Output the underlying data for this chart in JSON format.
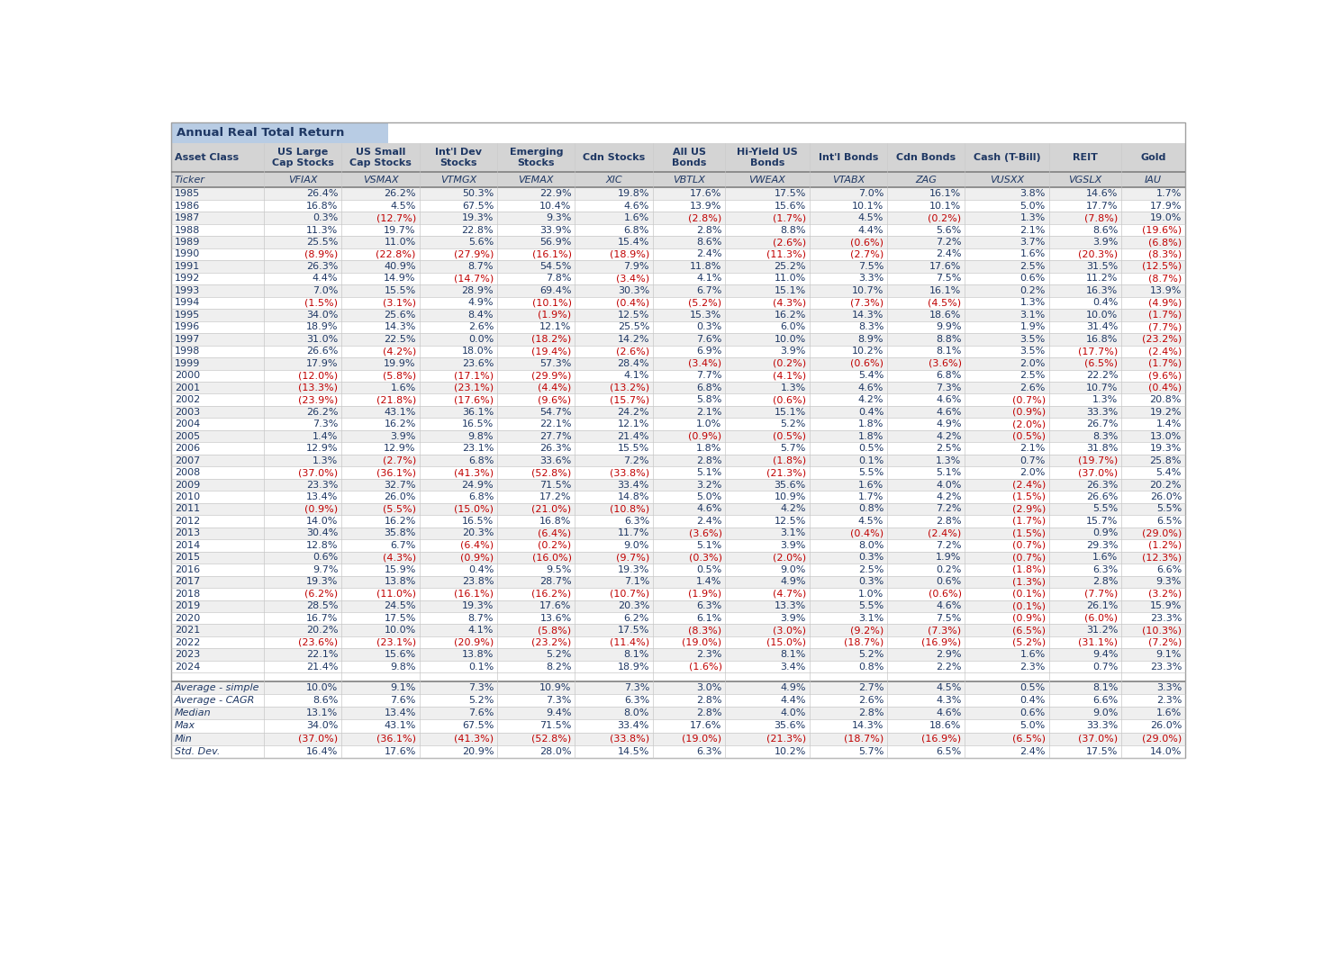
{
  "title": "Annual Real Total Return",
  "headers": [
    "Asset Class",
    "US Large\nCap Stocks",
    "US Small\nCap Stocks",
    "Int'l Dev\nStocks",
    "Emerging\nStocks",
    "Cdn Stocks",
    "All US\nBonds",
    "Hi-Yield US\nBonds",
    "Int'l Bonds",
    "Cdn Bonds",
    "Cash (T-Bill)",
    "REIT",
    "Gold"
  ],
  "ticker_row": [
    "Ticker",
    "VFIAX",
    "VSMAX",
    "VTMGX",
    "VEMAX",
    "XIC",
    "VBTLX",
    "VWEAX",
    "VTABX",
    "ZAG",
    "VUSXX",
    "VGSLX",
    "IAU"
  ],
  "years": [
    1985,
    1986,
    1987,
    1988,
    1989,
    1990,
    1991,
    1992,
    1993,
    1994,
    1995,
    1996,
    1997,
    1998,
    1999,
    2000,
    2001,
    2002,
    2003,
    2004,
    2005,
    2006,
    2007,
    2008,
    2009,
    2010,
    2011,
    2012,
    2013,
    2014,
    2015,
    2016,
    2017,
    2018,
    2019,
    2020,
    2021,
    2022,
    2023,
    2024
  ],
  "data": [
    [
      "26.4%",
      "26.2%",
      "50.3%",
      "22.9%",
      "19.8%",
      "17.6%",
      "17.5%",
      "7.0%",
      "16.1%",
      "3.8%",
      "14.6%",
      "1.7%"
    ],
    [
      "16.8%",
      "4.5%",
      "67.5%",
      "10.4%",
      "4.6%",
      "13.9%",
      "15.6%",
      "10.1%",
      "10.1%",
      "5.0%",
      "17.7%",
      "17.9%"
    ],
    [
      "0.3%",
      "(12.7%)",
      "19.3%",
      "9.3%",
      "1.6%",
      "(2.8%)",
      "(1.7%)",
      "4.5%",
      "(0.2%)",
      "1.3%",
      "(7.8%)",
      "19.0%"
    ],
    [
      "11.3%",
      "19.7%",
      "22.8%",
      "33.9%",
      "6.8%",
      "2.8%",
      "8.8%",
      "4.4%",
      "5.6%",
      "2.1%",
      "8.6%",
      "(19.6%)"
    ],
    [
      "25.5%",
      "11.0%",
      "5.6%",
      "56.9%",
      "15.4%",
      "8.6%",
      "(2.6%)",
      "(0.6%)",
      "7.2%",
      "3.7%",
      "3.9%",
      "(6.8%)"
    ],
    [
      "(8.9%)",
      "(22.8%)",
      "(27.9%)",
      "(16.1%)",
      "(18.9%)",
      "2.4%",
      "(11.3%)",
      "(2.7%)",
      "2.4%",
      "1.6%",
      "(20.3%)",
      "(8.3%)"
    ],
    [
      "26.3%",
      "40.9%",
      "8.7%",
      "54.5%",
      "7.9%",
      "11.8%",
      "25.2%",
      "7.5%",
      "17.6%",
      "2.5%",
      "31.5%",
      "(12.5%)"
    ],
    [
      "4.4%",
      "14.9%",
      "(14.7%)",
      "7.8%",
      "(3.4%)",
      "4.1%",
      "11.0%",
      "3.3%",
      "7.5%",
      "0.6%",
      "11.2%",
      "(8.7%)"
    ],
    [
      "7.0%",
      "15.5%",
      "28.9%",
      "69.4%",
      "30.3%",
      "6.7%",
      "15.1%",
      "10.7%",
      "16.1%",
      "0.2%",
      "16.3%",
      "13.9%"
    ],
    [
      "(1.5%)",
      "(3.1%)",
      "4.9%",
      "(10.1%)",
      "(0.4%)",
      "(5.2%)",
      "(4.3%)",
      "(7.3%)",
      "(4.5%)",
      "1.3%",
      "0.4%",
      "(4.9%)"
    ],
    [
      "34.0%",
      "25.6%",
      "8.4%",
      "(1.9%)",
      "12.5%",
      "15.3%",
      "16.2%",
      "14.3%",
      "18.6%",
      "3.1%",
      "10.0%",
      "(1.7%)"
    ],
    [
      "18.9%",
      "14.3%",
      "2.6%",
      "12.1%",
      "25.5%",
      "0.3%",
      "6.0%",
      "8.3%",
      "9.9%",
      "1.9%",
      "31.4%",
      "(7.7%)"
    ],
    [
      "31.0%",
      "22.5%",
      "0.0%",
      "(18.2%)",
      "14.2%",
      "7.6%",
      "10.0%",
      "8.9%",
      "8.8%",
      "3.5%",
      "16.8%",
      "(23.2%)"
    ],
    [
      "26.6%",
      "(4.2%)",
      "18.0%",
      "(19.4%)",
      "(2.6%)",
      "6.9%",
      "3.9%",
      "10.2%",
      "8.1%",
      "3.5%",
      "(17.7%)",
      "(2.4%)"
    ],
    [
      "17.9%",
      "19.9%",
      "23.6%",
      "57.3%",
      "28.4%",
      "(3.4%)",
      "(0.2%)",
      "(0.6%)",
      "(3.6%)",
      "2.0%",
      "(6.5%)",
      "(1.7%)"
    ],
    [
      "(12.0%)",
      "(5.8%)",
      "(17.1%)",
      "(29.9%)",
      "4.1%",
      "7.7%",
      "(4.1%)",
      "5.4%",
      "6.8%",
      "2.5%",
      "22.2%",
      "(9.6%)"
    ],
    [
      "(13.3%)",
      "1.6%",
      "(23.1%)",
      "(4.4%)",
      "(13.2%)",
      "6.8%",
      "1.3%",
      "4.6%",
      "7.3%",
      "2.6%",
      "10.7%",
      "(0.4%)"
    ],
    [
      "(23.9%)",
      "(21.8%)",
      "(17.6%)",
      "(9.6%)",
      "(15.7%)",
      "5.8%",
      "(0.6%)",
      "4.2%",
      "4.6%",
      "(0.7%)",
      "1.3%",
      "20.8%"
    ],
    [
      "26.2%",
      "43.1%",
      "36.1%",
      "54.7%",
      "24.2%",
      "2.1%",
      "15.1%",
      "0.4%",
      "4.6%",
      "(0.9%)",
      "33.3%",
      "19.2%"
    ],
    [
      "7.3%",
      "16.2%",
      "16.5%",
      "22.1%",
      "12.1%",
      "1.0%",
      "5.2%",
      "1.8%",
      "4.9%",
      "(2.0%)",
      "26.7%",
      "1.4%"
    ],
    [
      "1.4%",
      "3.9%",
      "9.8%",
      "27.7%",
      "21.4%",
      "(0.9%)",
      "(0.5%)",
      "1.8%",
      "4.2%",
      "(0.5%)",
      "8.3%",
      "13.0%"
    ],
    [
      "12.9%",
      "12.9%",
      "23.1%",
      "26.3%",
      "15.5%",
      "1.8%",
      "5.7%",
      "0.5%",
      "2.5%",
      "2.1%",
      "31.8%",
      "19.3%"
    ],
    [
      "1.3%",
      "(2.7%)",
      "6.8%",
      "33.6%",
      "7.2%",
      "2.8%",
      "(1.8%)",
      "0.1%",
      "1.3%",
      "0.7%",
      "(19.7%)",
      "25.8%"
    ],
    [
      "(37.0%)",
      "(36.1%)",
      "(41.3%)",
      "(52.8%)",
      "(33.8%)",
      "5.1%",
      "(21.3%)",
      "5.5%",
      "5.1%",
      "2.0%",
      "(37.0%)",
      "5.4%"
    ],
    [
      "23.3%",
      "32.7%",
      "24.9%",
      "71.5%",
      "33.4%",
      "3.2%",
      "35.6%",
      "1.6%",
      "4.0%",
      "(2.4%)",
      "26.3%",
      "20.2%"
    ],
    [
      "13.4%",
      "26.0%",
      "6.8%",
      "17.2%",
      "14.8%",
      "5.0%",
      "10.9%",
      "1.7%",
      "4.2%",
      "(1.5%)",
      "26.6%",
      "26.0%"
    ],
    [
      "(0.9%)",
      "(5.5%)",
      "(15.0%)",
      "(21.0%)",
      "(10.8%)",
      "4.6%",
      "4.2%",
      "0.8%",
      "7.2%",
      "(2.9%)",
      "5.5%",
      "5.5%"
    ],
    [
      "14.0%",
      "16.2%",
      "16.5%",
      "16.8%",
      "6.3%",
      "2.4%",
      "12.5%",
      "4.5%",
      "2.8%",
      "(1.7%)",
      "15.7%",
      "6.5%"
    ],
    [
      "30.4%",
      "35.8%",
      "20.3%",
      "(6.4%)",
      "11.7%",
      "(3.6%)",
      "3.1%",
      "(0.4%)",
      "(2.4%)",
      "(1.5%)",
      "0.9%",
      "(29.0%)"
    ],
    [
      "12.8%",
      "6.7%",
      "(6.4%)",
      "(0.2%)",
      "9.0%",
      "5.1%",
      "3.9%",
      "8.0%",
      "7.2%",
      "(0.7%)",
      "29.3%",
      "(1.2%)"
    ],
    [
      "0.6%",
      "(4.3%)",
      "(0.9%)",
      "(16.0%)",
      "(9.7%)",
      "(0.3%)",
      "(2.0%)",
      "0.3%",
      "1.9%",
      "(0.7%)",
      "1.6%",
      "(12.3%)"
    ],
    [
      "9.7%",
      "15.9%",
      "0.4%",
      "9.5%",
      "19.3%",
      "0.5%",
      "9.0%",
      "2.5%",
      "0.2%",
      "(1.8%)",
      "6.3%",
      "6.6%"
    ],
    [
      "19.3%",
      "13.8%",
      "23.8%",
      "28.7%",
      "7.1%",
      "1.4%",
      "4.9%",
      "0.3%",
      "0.6%",
      "(1.3%)",
      "2.8%",
      "9.3%"
    ],
    [
      "(6.2%)",
      "(11.0%)",
      "(16.1%)",
      "(16.2%)",
      "(10.7%)",
      "(1.9%)",
      "(4.7%)",
      "1.0%",
      "(0.6%)",
      "(0.1%)",
      "(7.7%)",
      "(3.2%)"
    ],
    [
      "28.5%",
      "24.5%",
      "19.3%",
      "17.6%",
      "20.3%",
      "6.3%",
      "13.3%",
      "5.5%",
      "4.6%",
      "(0.1%)",
      "26.1%",
      "15.9%"
    ],
    [
      "16.7%",
      "17.5%",
      "8.7%",
      "13.6%",
      "6.2%",
      "6.1%",
      "3.9%",
      "3.1%",
      "7.5%",
      "(0.9%)",
      "(6.0%)",
      "23.3%"
    ],
    [
      "20.2%",
      "10.0%",
      "4.1%",
      "(5.8%)",
      "17.5%",
      "(8.3%)",
      "(3.0%)",
      "(9.2%)",
      "(7.3%)",
      "(6.5%)",
      "31.2%",
      "(10.3%)"
    ],
    [
      "(23.6%)",
      "(23.1%)",
      "(20.9%)",
      "(23.2%)",
      "(11.4%)",
      "(19.0%)",
      "(15.0%)",
      "(18.7%)",
      "(16.9%)",
      "(5.2%)",
      "(31.1%)",
      "(7.2%)"
    ],
    [
      "22.1%",
      "15.6%",
      "13.8%",
      "5.2%",
      "8.1%",
      "2.3%",
      "8.1%",
      "5.2%",
      "2.9%",
      "1.6%",
      "9.4%",
      "9.1%"
    ],
    [
      "21.4%",
      "9.8%",
      "0.1%",
      "8.2%",
      "18.9%",
      "(1.6%)",
      "3.4%",
      "0.8%",
      "2.2%",
      "2.3%",
      "0.7%",
      "23.3%"
    ]
  ],
  "stat_labels": [
    "Average - simple",
    "Average - CAGR",
    "Median",
    "Max",
    "Min",
    "Std. Dev."
  ],
  "stat_data": [
    [
      "10.0%",
      "9.1%",
      "7.3%",
      "10.9%",
      "7.3%",
      "3.0%",
      "4.9%",
      "2.7%",
      "4.5%",
      "0.5%",
      "8.1%",
      "3.3%"
    ],
    [
      "8.6%",
      "7.6%",
      "5.2%",
      "7.3%",
      "6.3%",
      "2.8%",
      "4.4%",
      "2.6%",
      "4.3%",
      "0.4%",
      "6.6%",
      "2.3%"
    ],
    [
      "13.1%",
      "13.4%",
      "7.6%",
      "9.4%",
      "8.0%",
      "2.8%",
      "4.0%",
      "2.8%",
      "4.6%",
      "0.6%",
      "9.0%",
      "1.6%"
    ],
    [
      "34.0%",
      "43.1%",
      "67.5%",
      "71.5%",
      "33.4%",
      "17.6%",
      "35.6%",
      "14.3%",
      "18.6%",
      "5.0%",
      "33.3%",
      "26.0%"
    ],
    [
      "(37.0%)",
      "(36.1%)",
      "(41.3%)",
      "(52.8%)",
      "(33.8%)",
      "(19.0%)",
      "(21.3%)",
      "(18.7%)",
      "(16.9%)",
      "(6.5%)",
      "(37.0%)",
      "(29.0%)"
    ],
    [
      "16.4%",
      "17.6%",
      "20.9%",
      "28.0%",
      "14.5%",
      "6.3%",
      "10.2%",
      "5.7%",
      "6.5%",
      "2.4%",
      "17.5%",
      "14.0%"
    ]
  ],
  "col_weights": [
    1.05,
    0.88,
    0.88,
    0.88,
    0.88,
    0.88,
    0.82,
    0.95,
    0.88,
    0.88,
    0.95,
    0.82,
    0.72
  ],
  "title_bg": "#b8cce4",
  "header_bg": "#d4d4d4",
  "ticker_bg": "#d4d4d4",
  "row_bg_odd": "#efefef",
  "row_bg_even": "#ffffff",
  "stats_separator_bg": "#ffffff",
  "neg_color": "#c00000",
  "pos_color": "#1f3864",
  "header_color": "#1f3864",
  "border_color": "#a0a0a0",
  "sep_color": "#c8c8c8",
  "thick_line_color": "#808080",
  "title_fontsize": 9.5,
  "header_fontsize": 8.0,
  "ticker_fontsize": 8.0,
  "data_fontsize": 8.0,
  "stats_fontsize": 8.0
}
